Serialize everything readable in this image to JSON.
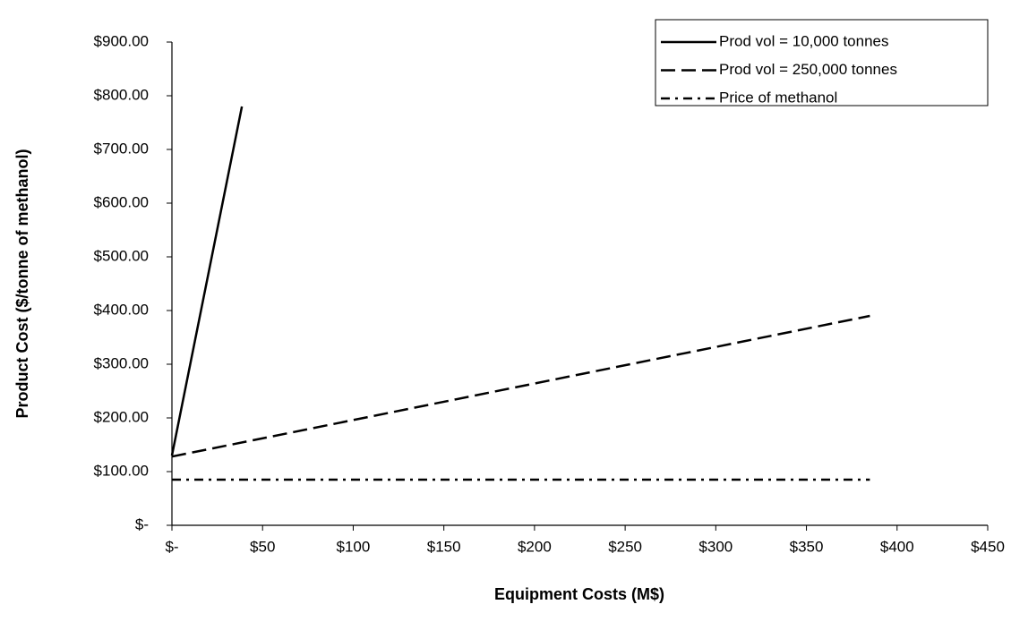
{
  "chart_data": {
    "type": "line",
    "x_label": "Equipment Costs (M$)",
    "y_label": "Product Cost ($/tonne of methanol)",
    "xlim": [
      0,
      450
    ],
    "xticks": [
      {
        "value": 0,
        "label": "$-"
      },
      {
        "value": 50,
        "label": "$50"
      },
      {
        "value": 100,
        "label": "$100"
      },
      {
        "value": 150,
        "label": "$150"
      },
      {
        "value": 200,
        "label": "$200"
      },
      {
        "value": 250,
        "label": "$250"
      },
      {
        "value": 300,
        "label": "$300"
      },
      {
        "value": 350,
        "label": "$350"
      },
      {
        "value": 400,
        "label": "$400"
      },
      {
        "value": 450,
        "label": "$450"
      }
    ],
    "ylim": [
      0,
      900
    ],
    "yticks": [
      {
        "value": 0,
        "label": "$-"
      },
      {
        "value": 100,
        "label": "$100.00"
      },
      {
        "value": 200,
        "label": "$200.00"
      },
      {
        "value": 300,
        "label": "$300.00"
      },
      {
        "value": 400,
        "label": "$400.00"
      },
      {
        "value": 500,
        "label": "$500.00"
      },
      {
        "value": 600,
        "label": "$600.00"
      },
      {
        "value": 700,
        "label": "$700.00"
      },
      {
        "value": 800,
        "label": "$800.00"
      },
      {
        "value": 900,
        "label": "$900.00"
      }
    ],
    "grid": false,
    "legend": "top-right",
    "series": [
      {
        "name": "Prod vol = 10,000 tonnes",
        "color": "#000000",
        "dash": "solid",
        "x": [
          0,
          38.6
        ],
        "values": [
          130,
          780
        ]
      },
      {
        "name": "Prod vol = 250,000 tonnes",
        "color": "#000000",
        "dash": "dashed",
        "x": [
          0,
          385
        ],
        "values": [
          128,
          390
        ]
      },
      {
        "name": "Price of methanol",
        "color": "#000000",
        "dash": "dashdot",
        "x": [
          0,
          385
        ],
        "values": [
          85,
          85
        ]
      }
    ]
  }
}
